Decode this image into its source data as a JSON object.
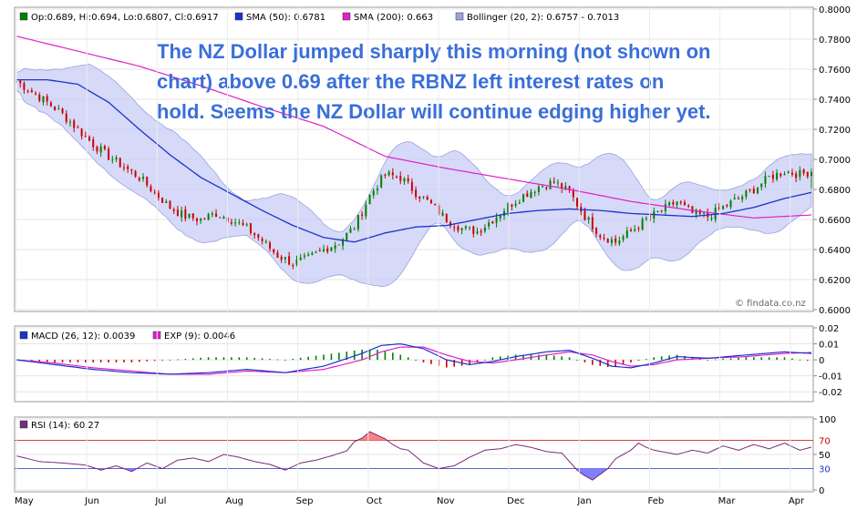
{
  "source_credit": "© findata.co.nz",
  "colors": {
    "up_candle": "#008000",
    "down_candle": "#cc0000",
    "sma50": "#1a33cc",
    "sma200": "#e020c8",
    "bollinger_fill": "#c8ccf4",
    "bollinger_edge": "#9aa2e4",
    "macd": "#1a33cc",
    "exp": "#e020c8",
    "rsi": "#7a2a7a",
    "overbought_fill": "#ff6a6a",
    "oversold_fill": "#6a6aff",
    "annotation": "#3a6fd8"
  },
  "annotation": {
    "lines": [
      "The NZ Dollar jumped sharply this morning (not shown on",
      "chart) above 0.69 after the RBNZ left interest rates on",
      "hold. Seems the NZ Dollar will continue edging higher yet."
    ]
  },
  "months": [
    "May",
    "Jun",
    "Jul",
    "Aug",
    "Sep",
    "Oct",
    "Nov",
    "Dec",
    "Jan",
    "Feb",
    "Mar",
    "Apr"
  ],
  "chart_data": [
    {
      "type": "candlestick",
      "panel": "price",
      "legend": [
        {
          "label": "Op:0.689, Hi:0.694, Lo:0.6807, Cl:0.6917",
          "color": "#008000"
        },
        {
          "label": "SMA (50): 0.6781",
          "color": "#1a33cc"
        },
        {
          "label": "SMA (200): 0.663",
          "color": "#e020c8"
        },
        {
          "label": "Bollinger (20, 2): 0.6757 - 0.7013",
          "color": "#9aa2e4"
        }
      ],
      "ylim": [
        0.6,
        0.8
      ],
      "y_ticks": [
        "0.6000",
        "0.6200",
        "0.6400",
        "0.6600",
        "0.6800",
        "0.7000",
        "0.7200",
        "0.7400",
        "0.7600",
        "0.7800",
        "0.8000"
      ],
      "close_path": [
        [
          0,
          0.752
        ],
        [
          4,
          0.745
        ],
        [
          8,
          0.738
        ],
        [
          12,
          0.73
        ],
        [
          16,
          0.72
        ],
        [
          20,
          0.71
        ],
        [
          24,
          0.702
        ],
        [
          28,
          0.695
        ],
        [
          32,
          0.688
        ],
        [
          36,
          0.678
        ],
        [
          40,
          0.668
        ],
        [
          44,
          0.662
        ],
        [
          48,
          0.66
        ],
        [
          52,
          0.664
        ],
        [
          56,
          0.66
        ],
        [
          60,
          0.654
        ],
        [
          64,
          0.646
        ],
        [
          68,
          0.636
        ],
        [
          72,
          0.631
        ],
        [
          76,
          0.634
        ],
        [
          80,
          0.64
        ],
        [
          84,
          0.645
        ],
        [
          88,
          0.655
        ],
        [
          92,
          0.676
        ],
        [
          96,
          0.69
        ],
        [
          100,
          0.688
        ],
        [
          104,
          0.678
        ],
        [
          108,
          0.67
        ],
        [
          112,
          0.66
        ],
        [
          116,
          0.654
        ],
        [
          120,
          0.652
        ],
        [
          124,
          0.66
        ],
        [
          128,
          0.669
        ],
        [
          132,
          0.676
        ],
        [
          136,
          0.682
        ],
        [
          140,
          0.685
        ],
        [
          144,
          0.678
        ],
        [
          148,
          0.662
        ],
        [
          152,
          0.65
        ],
        [
          156,
          0.645
        ],
        [
          160,
          0.652
        ],
        [
          164,
          0.66
        ],
        [
          168,
          0.666
        ],
        [
          172,
          0.672
        ],
        [
          176,
          0.664
        ],
        [
          180,
          0.662
        ],
        [
          184,
          0.668
        ],
        [
          188,
          0.674
        ],
        [
          192,
          0.68
        ],
        [
          196,
          0.688
        ],
        [
          200,
          0.692
        ],
        [
          204,
          0.69
        ],
        [
          207,
          0.692
        ]
      ],
      "sma50_path": [
        [
          0,
          0.753
        ],
        [
          8,
          0.753
        ],
        [
          16,
          0.75
        ],
        [
          24,
          0.738
        ],
        [
          32,
          0.72
        ],
        [
          40,
          0.703
        ],
        [
          48,
          0.688
        ],
        [
          56,
          0.677
        ],
        [
          64,
          0.666
        ],
        [
          72,
          0.656
        ],
        [
          80,
          0.648
        ],
        [
          88,
          0.645
        ],
        [
          96,
          0.651
        ],
        [
          104,
          0.655
        ],
        [
          112,
          0.656
        ],
        [
          120,
          0.66
        ],
        [
          128,
          0.664
        ],
        [
          136,
          0.666
        ],
        [
          144,
          0.667
        ],
        [
          152,
          0.666
        ],
        [
          160,
          0.664
        ],
        [
          168,
          0.663
        ],
        [
          176,
          0.662
        ],
        [
          184,
          0.664
        ],
        [
          192,
          0.668
        ],
        [
          200,
          0.674
        ],
        [
          207,
          0.678
        ]
      ],
      "sma200_path": [
        [
          0,
          0.782
        ],
        [
          16,
          0.772
        ],
        [
          32,
          0.762
        ],
        [
          48,
          0.749
        ],
        [
          64,
          0.735
        ],
        [
          80,
          0.722
        ],
        [
          96,
          0.702
        ],
        [
          112,
          0.694
        ],
        [
          128,
          0.687
        ],
        [
          144,
          0.68
        ],
        [
          160,
          0.672
        ],
        [
          176,
          0.666
        ],
        [
          192,
          0.661
        ],
        [
          207,
          0.663
        ]
      ],
      "last_bar": {
        "open": 0.689,
        "high": 0.694,
        "low": 0.6807,
        "close": 0.6917
      }
    },
    {
      "type": "line",
      "panel": "macd",
      "legend": [
        {
          "label": "MACD (26, 12): 0.0039",
          "color": "#1a33cc"
        },
        {
          "label": "EXP (9): 0.0046",
          "color": "#e020c8"
        }
      ],
      "ylim": [
        -0.025,
        0.02
      ],
      "y_ticks": [
        "0.02",
        "0.01",
        "0",
        "-0.01",
        "-0.02"
      ],
      "macd_path": [
        [
          0,
          0.0
        ],
        [
          10,
          -0.003
        ],
        [
          20,
          -0.006
        ],
        [
          30,
          -0.008
        ],
        [
          40,
          -0.009
        ],
        [
          50,
          -0.008
        ],
        [
          60,
          -0.006
        ],
        [
          70,
          -0.008
        ],
        [
          80,
          -0.004
        ],
        [
          90,
          0.004
        ],
        [
          95,
          0.009
        ],
        [
          100,
          0.01
        ],
        [
          106,
          0.007
        ],
        [
          112,
          0.0
        ],
        [
          118,
          -0.003
        ],
        [
          124,
          -0.001
        ],
        [
          130,
          0.002
        ],
        [
          138,
          0.005
        ],
        [
          144,
          0.006
        ],
        [
          150,
          0.001
        ],
        [
          155,
          -0.004
        ],
        [
          160,
          -0.005
        ],
        [
          166,
          -0.002
        ],
        [
          172,
          0.002
        ],
        [
          180,
          0.001
        ],
        [
          190,
          0.003
        ],
        [
          200,
          0.005
        ],
        [
          207,
          0.004
        ]
      ],
      "exp_path": [
        [
          0,
          0.0
        ],
        [
          10,
          -0.002
        ],
        [
          20,
          -0.005
        ],
        [
          30,
          -0.007
        ],
        [
          40,
          -0.009
        ],
        [
          50,
          -0.009
        ],
        [
          60,
          -0.007
        ],
        [
          70,
          -0.008
        ],
        [
          80,
          -0.006
        ],
        [
          90,
          0.0
        ],
        [
          95,
          0.005
        ],
        [
          100,
          0.008
        ],
        [
          106,
          0.008
        ],
        [
          112,
          0.003
        ],
        [
          118,
          -0.001
        ],
        [
          124,
          -0.002
        ],
        [
          130,
          0.0
        ],
        [
          138,
          0.003
        ],
        [
          144,
          0.005
        ],
        [
          150,
          0.003
        ],
        [
          155,
          -0.001
        ],
        [
          160,
          -0.004
        ],
        [
          166,
          -0.003
        ],
        [
          172,
          0.0
        ],
        [
          180,
          0.001
        ],
        [
          190,
          0.002
        ],
        [
          200,
          0.004
        ],
        [
          207,
          0.0046
        ]
      ]
    },
    {
      "type": "line",
      "panel": "rsi",
      "legend": [
        {
          "label": "RSI (14): 60.27",
          "color": "#7a2a7a"
        }
      ],
      "ylim": [
        0,
        100
      ],
      "y_ticks": [
        "100",
        "50",
        "0"
      ],
      "levels": [
        {
          "value": 70,
          "label": "70",
          "color": "#cc0000"
        },
        {
          "value": 30,
          "label": "30",
          "color": "#1a33cc"
        }
      ],
      "rsi_path": [
        [
          0,
          48
        ],
        [
          6,
          40
        ],
        [
          12,
          38
        ],
        [
          18,
          35
        ],
        [
          22,
          28
        ],
        [
          26,
          34
        ],
        [
          30,
          26
        ],
        [
          34,
          38
        ],
        [
          38,
          30
        ],
        [
          42,
          42
        ],
        [
          46,
          45
        ],
        [
          50,
          40
        ],
        [
          54,
          50
        ],
        [
          58,
          46
        ],
        [
          62,
          40
        ],
        [
          66,
          36
        ],
        [
          70,
          28
        ],
        [
          74,
          38
        ],
        [
          78,
          42
        ],
        [
          82,
          48
        ],
        [
          86,
          55
        ],
        [
          88,
          68
        ],
        [
          90,
          73
        ],
        [
          92,
          82
        ],
        [
          94,
          77
        ],
        [
          96,
          72
        ],
        [
          98,
          64
        ],
        [
          100,
          58
        ],
        [
          102,
          56
        ],
        [
          106,
          38
        ],
        [
          110,
          30
        ],
        [
          114,
          34
        ],
        [
          118,
          46
        ],
        [
          122,
          56
        ],
        [
          126,
          58
        ],
        [
          130,
          64
        ],
        [
          134,
          60
        ],
        [
          138,
          54
        ],
        [
          142,
          52
        ],
        [
          144,
          40
        ],
        [
          146,
          28
        ],
        [
          148,
          20
        ],
        [
          150,
          14
        ],
        [
          152,
          22
        ],
        [
          154,
          30
        ],
        [
          156,
          44
        ],
        [
          158,
          50
        ],
        [
          160,
          56
        ],
        [
          162,
          66
        ],
        [
          164,
          60
        ],
        [
          166,
          56
        ],
        [
          168,
          54
        ],
        [
          172,
          50
        ],
        [
          176,
          56
        ],
        [
          180,
          52
        ],
        [
          184,
          62
        ],
        [
          188,
          56
        ],
        [
          192,
          64
        ],
        [
          196,
          58
        ],
        [
          200,
          66
        ],
        [
          204,
          56
        ],
        [
          207,
          60.27
        ]
      ]
    }
  ]
}
